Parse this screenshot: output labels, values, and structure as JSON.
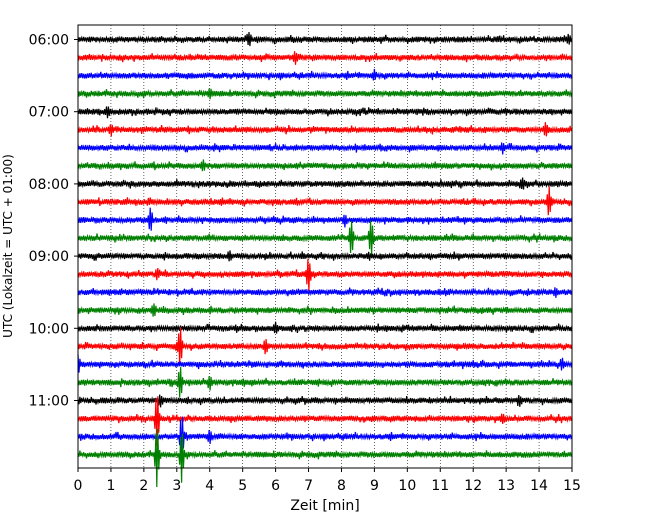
{
  "chart_data": {
    "type": "line",
    "title": "",
    "xlabel": "Zeit  [min]",
    "ylabel": "UTC (Lokalzeit = UTC + 01:00)",
    "xlim": [
      0,
      15
    ],
    "x_ticks": [
      "0",
      "1",
      "2",
      "3",
      "4",
      "5",
      "6",
      "7",
      "8",
      "9",
      "10",
      "11",
      "12",
      "13",
      "14",
      "15"
    ],
    "y_ticks": [
      "06:00",
      "07:00",
      "08:00",
      "09:00",
      "10:00",
      "11:00"
    ],
    "grid": "vertical-dotted",
    "trace_interval_minutes": 15,
    "trace_start": "06:00",
    "trace_colors": [
      "#000000",
      "#ff0000",
      "#0000ff",
      "#008000"
    ],
    "traces": [
      {
        "hour_label": "06:00",
        "events": [
          {
            "t": 5.2,
            "amp": 0.6
          },
          {
            "t": 14.9,
            "amp": 0.4
          }
        ]
      },
      {
        "hour_label": "",
        "events": [
          {
            "t": 6.6,
            "amp": 0.5
          }
        ]
      },
      {
        "hour_label": "",
        "events": [
          {
            "t": 9.0,
            "amp": 0.4
          }
        ]
      },
      {
        "hour_label": "",
        "events": [
          {
            "t": 4.0,
            "amp": 0.4
          }
        ]
      },
      {
        "hour_label": "07:00",
        "events": [
          {
            "t": 0.9,
            "amp": 0.4
          }
        ]
      },
      {
        "hour_label": "",
        "events": [
          {
            "t": 1.0,
            "amp": 0.5
          },
          {
            "t": 14.2,
            "amp": 0.6
          }
        ]
      },
      {
        "hour_label": "",
        "events": [
          {
            "t": 12.9,
            "amp": 0.4
          }
        ]
      },
      {
        "hour_label": "",
        "events": [
          {
            "t": 3.8,
            "amp": 0.4
          }
        ]
      },
      {
        "hour_label": "08:00",
        "events": [
          {
            "t": 13.5,
            "amp": 0.5
          }
        ]
      },
      {
        "hour_label": "",
        "events": [
          {
            "t": 14.3,
            "amp": 1.4
          }
        ]
      },
      {
        "hour_label": "",
        "events": [
          {
            "t": 2.2,
            "amp": 1.2
          },
          {
            "t": 8.1,
            "amp": 0.5
          }
        ]
      },
      {
        "hour_label": "",
        "events": [
          {
            "t": 8.3,
            "amp": 1.6
          },
          {
            "t": 8.9,
            "amp": 1.8
          }
        ]
      },
      {
        "hour_label": "09:00",
        "events": [
          {
            "t": 4.6,
            "amp": 0.4
          }
        ]
      },
      {
        "hour_label": "",
        "events": [
          {
            "t": 7.0,
            "amp": 1.6
          },
          {
            "t": 2.4,
            "amp": 0.5
          }
        ]
      },
      {
        "hour_label": "",
        "events": [
          {
            "t": 14.5,
            "amp": 0.4
          }
        ]
      },
      {
        "hour_label": "",
        "events": [
          {
            "t": 2.3,
            "amp": 0.6
          }
        ]
      },
      {
        "hour_label": "10:00",
        "events": [
          {
            "t": 6.0,
            "amp": 0.5
          }
        ]
      },
      {
        "hour_label": "",
        "events": [
          {
            "t": 5.7,
            "amp": 0.7
          },
          {
            "t": 3.1,
            "amp": 2.0
          }
        ]
      },
      {
        "hour_label": "",
        "events": [
          {
            "t": 0.0,
            "amp": 0.8
          },
          {
            "t": 14.7,
            "amp": 0.5
          }
        ]
      },
      {
        "hour_label": "",
        "events": [
          {
            "t": 3.1,
            "amp": 1.6
          },
          {
            "t": 4.0,
            "amp": 0.6
          }
        ]
      },
      {
        "hour_label": "11:00",
        "events": [
          {
            "t": 2.5,
            "amp": 0.5
          },
          {
            "t": 13.4,
            "amp": 0.5
          }
        ]
      },
      {
        "hour_label": "",
        "events": [
          {
            "t": 2.4,
            "amp": 2.8
          },
          {
            "t": 12.9,
            "amp": 0.4
          }
        ]
      },
      {
        "hour_label": "",
        "events": [
          {
            "t": 3.15,
            "amp": 2.4
          },
          {
            "t": 4.0,
            "amp": 0.5
          }
        ]
      },
      {
        "hour_label": "",
        "events": [
          {
            "t": 2.4,
            "amp": 3.2
          },
          {
            "t": 3.15,
            "amp": 2.6
          }
        ]
      }
    ]
  }
}
